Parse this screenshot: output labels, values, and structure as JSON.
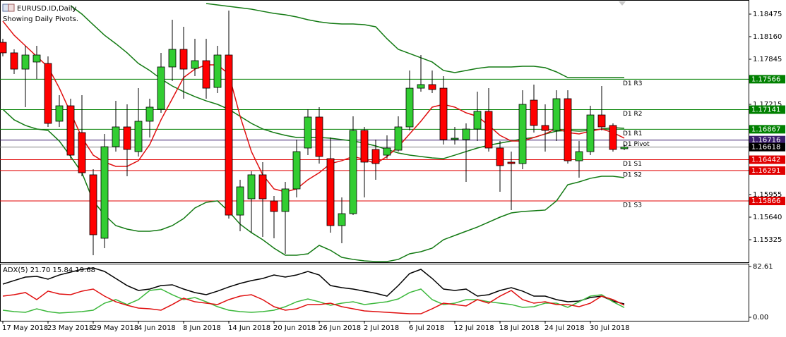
{
  "chart_data": [
    {
      "type": "candlestick",
      "title": "EURUSD.ID,Daily",
      "subtitle": "Showing Daily Pivots.",
      "categories": [
        "17 May 2018",
        null,
        null,
        null,
        "23 May 2018",
        null,
        null,
        null,
        "29 May 2018",
        null,
        null,
        null,
        "4 Jun 2018",
        null,
        null,
        null,
        "8 Jun 2018",
        null,
        null,
        null,
        "14 Jun 2018",
        null,
        null,
        null,
        "20 Jun 2018",
        null,
        null,
        null,
        "26 Jun 2018",
        null,
        null,
        null,
        "2 Jul 2018",
        null,
        null,
        null,
        "6 Jul 2018",
        null,
        null,
        null,
        "12 Jul 2018",
        null,
        null,
        null,
        "18 Jul 2018",
        null,
        null,
        null,
        "24 Jul 2018",
        null,
        null,
        null,
        "30 Jul 2018",
        null,
        null,
        null
      ],
      "open": [
        1.18081,
        1.17934,
        1.17707,
        1.17806,
        1.17786,
        1.16979,
        1.17195,
        1.16821,
        1.16231,
        1.15345,
        1.16624,
        1.169,
        1.16555,
        1.16979,
        1.17146,
        1.17737,
        1.17983,
        1.17717,
        1.17825,
        1.17451,
        1.17904,
        1.15669,
        1.15896,
        1.16231,
        1.15866,
        1.15719,
        1.16034,
        1.16605,
        1.17038,
        1.16457,
        1.15522,
        1.15689,
        1.16851,
        1.16585,
        1.16506,
        1.16575,
        1.169,
        1.17441,
        1.17491,
        1.17441,
        1.16723,
        1.16723,
        1.1687,
        1.17117,
        1.16605,
        1.16408,
        1.16388,
        1.17274,
        1.1692,
        1.16851,
        1.17294,
        1.16427,
        1.16555,
        1.17067,
        1.1692,
        1.16595
      ],
      "high": [
        1.1813,
        1.17983,
        1.18032,
        1.18032,
        1.17884,
        1.17343,
        1.17294,
        1.17343,
        1.16309,
        1.16802,
        1.17264,
        1.17215,
        1.17441,
        1.17294,
        1.17934,
        1.18396,
        1.18298,
        1.1813,
        1.1813,
        1.18032,
        1.18524,
        1.16162,
        1.1628,
        1.16408,
        1.15935,
        1.16132,
        1.16723,
        1.17146,
        1.17176,
        1.16752,
        1.15916,
        1.17048,
        1.169,
        1.16723,
        1.16782,
        1.17048,
        1.17687,
        1.17904,
        1.17687,
        1.17609,
        1.169,
        1.16949,
        1.17392,
        1.17441,
        1.16703,
        1.16555,
        1.17412,
        1.17491,
        1.17215,
        1.17412,
        1.17412,
        1.16703,
        1.17195,
        1.17471,
        1.16949,
        1.16654
      ],
      "low": [
        1.17884,
        1.17638,
        1.17176,
        1.17569,
        1.169,
        1.169,
        1.16457,
        1.16211,
        1.15108,
        1.15207,
        1.16555,
        1.16211,
        1.16487,
        1.16752,
        1.17097,
        1.1754,
        1.17294,
        1.17609,
        1.17294,
        1.17372,
        1.1562,
        1.15443,
        1.15423,
        1.15364,
        1.15345,
        1.15128,
        1.15916,
        1.16506,
        1.16388,
        1.15423,
        1.15276,
        1.15669,
        1.15916,
        1.16162,
        1.16457,
        1.16555,
        1.16851,
        1.17392,
        1.17372,
        1.16654,
        1.16654,
        1.16132,
        1.16703,
        1.16555,
        1.15994,
        1.15738,
        1.16309,
        1.16821,
        1.16555,
        1.16703,
        1.16388,
        1.16191,
        1.16506,
        1.16851,
        1.16555,
        1.16575
      ],
      "close": [
        1.17934,
        1.17707,
        1.17904,
        1.17904,
        1.16949,
        1.17195,
        1.16506,
        1.1626,
        1.15394,
        1.16624,
        1.169,
        1.16585,
        1.16979,
        1.17176,
        1.17737,
        1.17983,
        1.17707,
        1.17825,
        1.17441,
        1.17904,
        1.15669,
        1.16063,
        1.16231,
        1.15896,
        1.15719,
        1.16034,
        1.16555,
        1.17038,
        1.16487,
        1.15522,
        1.15689,
        1.16851,
        1.16408,
        1.16388,
        1.16605,
        1.169,
        1.17441,
        1.17491,
        1.17422,
        1.16723,
        1.16742,
        1.1687,
        1.17117,
        1.16605,
        1.16359,
        1.16388,
        1.17215,
        1.1692,
        1.16851,
        1.17294,
        1.16427,
        1.16555,
        1.17067,
        1.169,
        1.16585,
        1.16618
      ],
      "up_color": "#32cd32",
      "down_color": "#ff0000",
      "overlays": [
        {
          "color": "#137a13",
          "values": [
            null,
            null,
            null,
            null,
            null,
            null,
            null,
            null,
            null,
            null,
            null,
            null,
            null,
            null,
            null,
            null,
            null,
            null,
            1.18623,
            1.18603,
            1.18583,
            1.18564,
            1.18544,
            1.18514,
            1.18485,
            1.18465,
            1.18436,
            1.18396,
            1.18367,
            1.18347,
            1.18337,
            1.18337,
            1.18327,
            1.18298,
            1.18131,
            1.17983,
            1.17924,
            1.17865,
            1.17806,
            1.17688,
            1.17658,
            1.17688,
            1.17717,
            1.17737,
            1.17737,
            1.17737,
            1.17747,
            1.17747,
            1.17727,
            1.17668,
            1.17589,
            1.17589,
            1.17589,
            1.17589,
            1.17589,
            1.17589
          ]
        },
        {
          "color": "#137a13",
          "values": [
            null,
            null,
            null,
            null,
            null,
            null,
            1.18593,
            1.18475,
            1.18327,
            1.1818,
            1.18062,
            1.17934,
            1.17786,
            1.17688,
            1.17569,
            1.17471,
            1.17392,
            1.17323,
            1.17264,
            1.17215,
            1.17146,
            1.17048,
            1.16949,
            1.16871,
            1.16821,
            1.16782,
            1.16752,
            1.16752,
            1.16752,
            1.16743,
            1.16723,
            1.16703,
            1.16674,
            1.16634,
            1.16585,
            1.16536,
            1.16506,
            1.16487,
            1.16467,
            1.16457,
            1.16506,
            1.16556,
            1.16605,
            1.16644,
            1.16674,
            1.16703,
            1.16733,
            1.16752,
            1.16802,
            1.16841,
            1.16851,
            1.16841,
            1.16851,
            1.16871,
            1.1689,
            1.1688
          ]
        },
        {
          "color": "#137a13",
          "values": [
            1.17146,
            1.16999,
            1.1692,
            1.16871,
            1.16851,
            1.16703,
            1.16487,
            1.1626,
            1.15867,
            1.1567,
            1.15522,
            1.15473,
            1.15443,
            1.15443,
            1.15463,
            1.15522,
            1.1562,
            1.15768,
            1.15847,
            1.15867,
            1.15719,
            1.15542,
            1.15424,
            1.15325,
            1.15207,
            1.15109,
            1.15109,
            1.15128,
            1.15246,
            1.15177,
            1.15079,
            1.1505,
            1.1503,
            1.1502,
            1.1502,
            1.1505,
            1.15128,
            1.15158,
            1.15207,
            1.15325,
            1.15384,
            1.15443,
            1.15502,
            1.15571,
            1.1564,
            1.15699,
            1.15719,
            1.15729,
            1.15739,
            1.15867,
            1.16093,
            1.16132,
            1.16182,
            1.16211,
            1.16211,
            1.16191
          ]
        },
        {
          "color": "#e01010",
          "values": [
            1.18377,
            1.1818,
            1.18032,
            1.17884,
            1.17737,
            1.17442,
            1.17097,
            1.16752,
            1.16506,
            1.16408,
            1.16349,
            1.16349,
            1.16428,
            1.16654,
            1.16999,
            1.17294,
            1.17589,
            1.17707,
            1.17766,
            1.17766,
            1.17638,
            1.17048,
            1.16556,
            1.16231,
            1.16034,
            1.15994,
            1.16034,
            1.16162,
            1.1626,
            1.16388,
            1.16428,
            1.16487,
            1.16447,
            1.16388,
            1.16487,
            1.16624,
            1.16802,
            1.16979,
            1.17176,
            1.17215,
            1.17176,
            1.17097,
            1.17048,
            1.1692,
            1.16782,
            1.16703,
            1.16703,
            1.16752,
            1.16802,
            1.1688,
            1.16821,
            1.16802,
            1.16841,
            1.16871,
            1.16821,
            1.16743
          ]
        }
      ],
      "levels": [
        {
          "label": "D1 R3",
          "value": 1.17566,
          "color": "#008000"
        },
        {
          "label": "D1 R2",
          "value": 1.17141,
          "color": "#008000"
        },
        {
          "label": "D1 R1",
          "value": 1.16867,
          "color": "#008000"
        },
        {
          "label": "D1 Pivot",
          "value": 1.16716,
          "color": "#3c1f6e"
        },
        {
          "label": "D1 S1",
          "value": 1.16442,
          "color": "#e00000"
        },
        {
          "label": "D1 S2",
          "value": 1.16291,
          "color": "#e00000"
        },
        {
          "label": "D1 S3",
          "value": 1.15866,
          "color": "#e00000"
        }
      ],
      "last_price": 1.16618,
      "ylim": [
        1.1501,
        1.18672
      ],
      "yticks": [
        1.18475,
        {
          "value": 1.1816,
          "label": "1.18160"
        },
        1.17845,
        1.17215,
        1.15955,
        {
          "value": 1.1564,
          "label": "1.15640"
        },
        1.15325
      ]
    },
    {
      "type": "line",
      "title": "ADX(5) 21.70 15.84 19.68",
      "series": [
        {
          "color": "#000000",
          "values": [
            53.9,
            59.7,
            65.4,
            66.5,
            62.0,
            68.8,
            73.4,
            78.0,
            80.3,
            74.6,
            63.1,
            51.6,
            43.6,
            45.9,
            51.6,
            52.8,
            45.9,
            40.2,
            36.7,
            42.5,
            49.3,
            55.1,
            59.7,
            63.1,
            68.8,
            65.4,
            68.8,
            74.6,
            68.8,
            51.6,
            48.2,
            45.9,
            42.5,
            39.0,
            34.4,
            51.6,
            71.1,
            78.0,
            63.1,
            45.9,
            43.6,
            45.9,
            34.4,
            36.7,
            43.6,
            48.2,
            42.5,
            34.4,
            34.4,
            28.7,
            25.2,
            26.4,
            32.1,
            34.4,
            26.4,
            21.7
          ]
        },
        {
          "color": "#3cb83c",
          "values": [
            11.5,
            9.2,
            8.0,
            13.8,
            9.2,
            6.9,
            8.0,
            9.2,
            11.5,
            22.9,
            28.7,
            20.7,
            28.7,
            43.6,
            45.9,
            36.7,
            28.7,
            32.1,
            25.2,
            17.2,
            11.5,
            9.2,
            8.0,
            9.2,
            11.5,
            17.2,
            25.2,
            29.8,
            25.2,
            19.5,
            22.9,
            25.2,
            20.7,
            22.9,
            25.2,
            29.8,
            40.2,
            45.9,
            28.7,
            20.7,
            22.9,
            28.7,
            28.7,
            25.2,
            22.9,
            20.7,
            16.1,
            17.2,
            22.9,
            22.9,
            16.1,
            25.2,
            34.4,
            36.7,
            25.2,
            15.84
          ]
        },
        {
          "color": "#e01010",
          "values": [
            34.4,
            36.7,
            40.2,
            28.7,
            42.5,
            37.9,
            36.7,
            42.5,
            45.9,
            34.4,
            25.2,
            19.5,
            14.9,
            13.8,
            11.5,
            20.7,
            31.0,
            25.2,
            22.9,
            20.7,
            28.7,
            34.4,
            36.7,
            28.7,
            17.2,
            11.5,
            13.8,
            20.7,
            20.7,
            22.9,
            17.2,
            13.8,
            10.3,
            9.2,
            8.0,
            6.9,
            5.7,
            5.7,
            13.8,
            22.9,
            20.7,
            18.4,
            28.7,
            22.9,
            34.4,
            43.6,
            28.7,
            22.9,
            25.2,
            20.7,
            20.7,
            17.2,
            22.9,
            34.4,
            28.7,
            19.68
          ]
        }
      ],
      "ylim": [
        0,
        82.61
      ],
      "yticks": [
        82.61,
        {
          "value": 0,
          "label": "0.00"
        }
      ]
    }
  ]
}
